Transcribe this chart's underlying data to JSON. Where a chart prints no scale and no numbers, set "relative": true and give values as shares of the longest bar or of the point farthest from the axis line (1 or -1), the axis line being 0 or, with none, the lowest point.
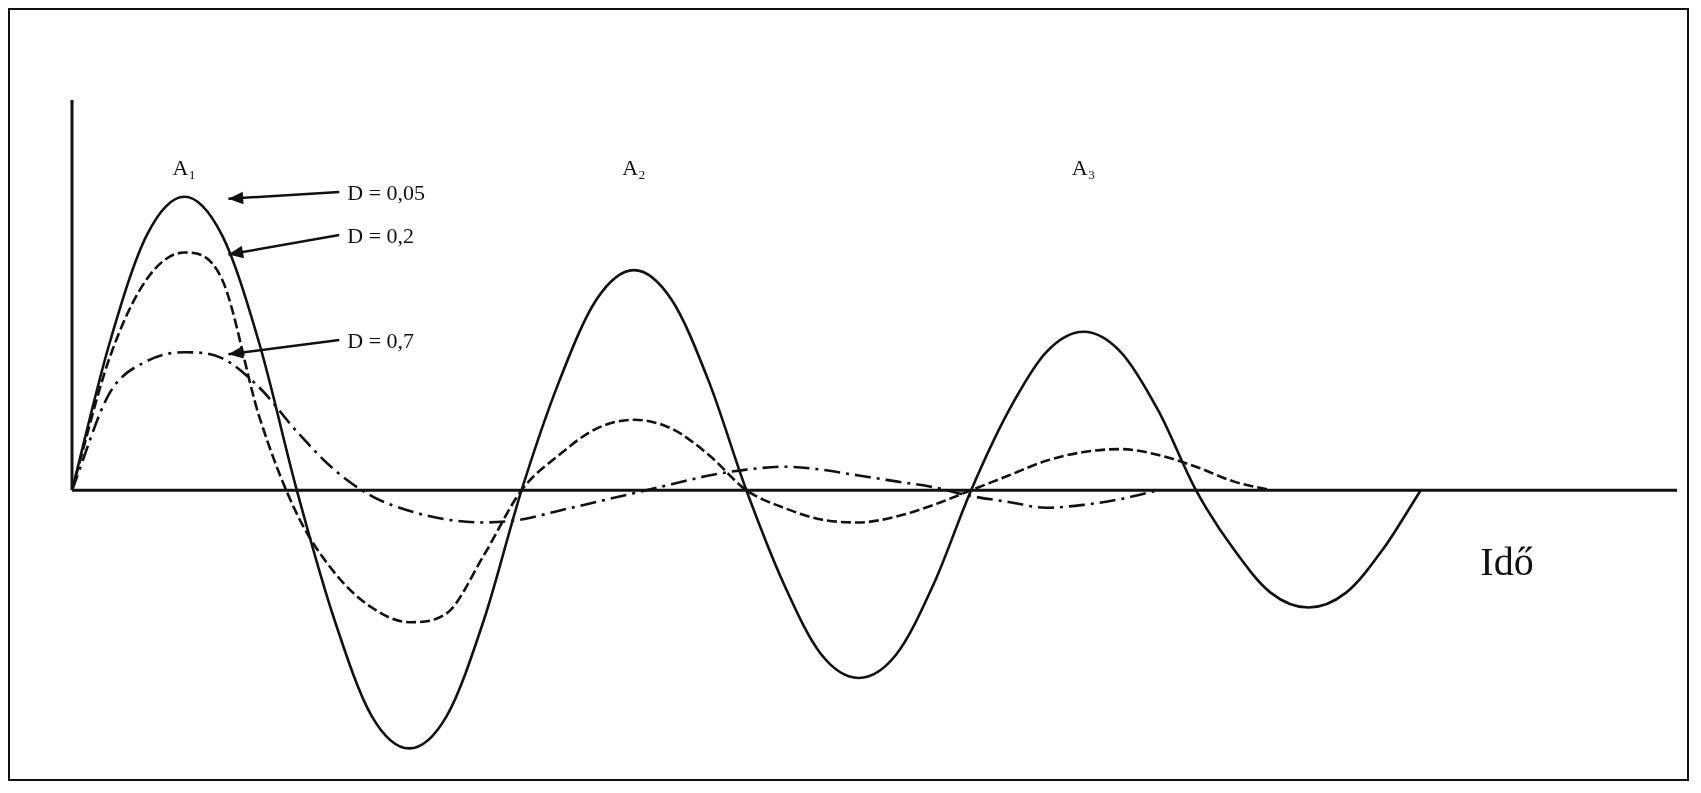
{
  "chart_data": {
    "type": "line",
    "relative": true,
    "xlabel": "Idő",
    "legend": false,
    "grid": false,
    "marker": "none",
    "categories": [
      null,
      null,
      null,
      null,
      null,
      null,
      null,
      null,
      null,
      null,
      null,
      null,
      null,
      null,
      null,
      null,
      null,
      null,
      null,
      null,
      null,
      null,
      null,
      null,
      null,
      null,
      null,
      null,
      null,
      null,
      null,
      null,
      null,
      null,
      null,
      null,
      null
    ],
    "annotations": [
      "A₁",
      "A₂",
      "A₃"
    ],
    "ref_lines": [
      {
        "axis": "y",
        "value": 0
      }
    ],
    "series": [
      {
        "name": "D = 0,05",
        "color": "#111111",
        "line_style": "solid",
        "values": [
          0,
          0.5,
          0.87,
          1,
          0.87,
          0.5,
          0,
          -0.44,
          -0.77,
          -0.88,
          -0.77,
          -0.44,
          0,
          0.37,
          0.65,
          0.75,
          0.65,
          0.37,
          0,
          -0.32,
          -0.56,
          -0.64,
          -0.56,
          -0.32,
          0,
          0.27,
          0.47,
          0.54,
          0.47,
          0.27,
          0,
          -0.2,
          -0.35,
          -0.4,
          -0.35,
          -0.2,
          0
        ]
      },
      {
        "name": "D = 0,2",
        "color": "#111111",
        "line_style": "dashed",
        "values": [
          0,
          0.45,
          0.72,
          0.81,
          0.72,
          0.25,
          -0.08,
          -0.28,
          -0.4,
          -0.45,
          -0.42,
          -0.22,
          0,
          0.12,
          0.21,
          0.24,
          0.21,
          0.12,
          0,
          -0.06,
          -0.1,
          -0.11,
          -0.09,
          -0.05,
          0,
          0.05,
          0.1,
          0.13,
          0.14,
          0.12,
          0.08,
          0.03,
          0,
          null,
          null,
          null,
          null
        ]
      },
      {
        "name": "D = 0,7",
        "color": "#111111",
        "line_style": "dashdot",
        "values": [
          0,
          0.33,
          0.44,
          0.47,
          0.45,
          0.35,
          0.2,
          0.07,
          -0.02,
          -0.07,
          -0.1,
          -0.11,
          -0.1,
          -0.07,
          -0.04,
          -0.01,
          0.02,
          0.05,
          0.07,
          0.08,
          0.07,
          0.05,
          0.03,
          0.01,
          -0.02,
          -0.04,
          -0.06,
          -0.05,
          -0.03,
          0,
          null,
          null,
          null,
          null,
          null,
          null,
          null
        ]
      }
    ]
  }
}
